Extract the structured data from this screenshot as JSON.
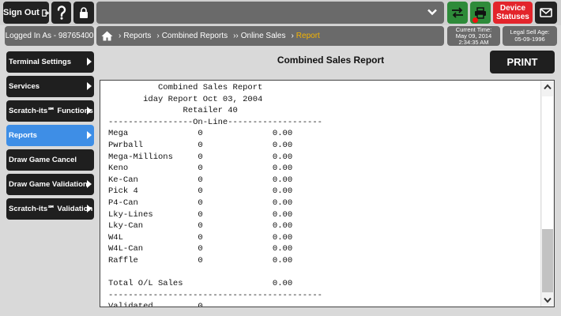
{
  "topbar": {
    "sign_out_label": "Sign Out",
    "device_statuses_label": "Device Statuses"
  },
  "status": {
    "logged_in": "Logged In As - 98765400",
    "current_time_label": "Current Time:",
    "current_date": "May 09, 2014",
    "current_time": "2:34:35 AM",
    "legal_sell_age_label": "Legal Sell Age:",
    "legal_sell_age_date": "05-09-1996"
  },
  "breadcrumb": [
    {
      "label": "Reports"
    },
    {
      "label": "Combined Reports"
    },
    {
      "label": "Online Sales"
    },
    {
      "label": "Report"
    }
  ],
  "menu": [
    {
      "label": "Terminal Settings",
      "arrow": true
    },
    {
      "label": "Services",
      "arrow": true
    },
    {
      "label": "Scratch-its℠ Functions",
      "arrow": true
    },
    {
      "label": "Reports",
      "arrow": true,
      "active": true
    },
    {
      "label": "Draw Game Cancel",
      "arrow": false
    },
    {
      "label": "Draw Game Validation",
      "arrow": true
    },
    {
      "label": "Scratch-its℠ Validation",
      "arrow": true
    }
  ],
  "main": {
    "title": "Combined Sales Report",
    "print_label": "PRINT"
  },
  "report": {
    "lines": [
      "          Combined Sales Report",
      "       iday Report Oct 03, 2004",
      "               Retailer 40",
      "-----------------On-Line-------------------",
      "Mega              0              0.00",
      "Pwrball           0              0.00",
      "Mega-Millions     0              0.00",
      "Keno              0              0.00",
      "Ke-Can            0              0.00",
      "Pick 4            0              0.00",
      "P4-Can            0              0.00",
      "Lky-Lines         0              0.00",
      "Lky-Can           0              0.00",
      "W4L               0              0.00",
      "W4L-Can           0              0.00",
      "Raffle            0              0.00",
      "",
      "Total O/L Sales                  0.00",
      "-------------------------------------------",
      "Validated         0"
    ]
  },
  "colors": {
    "accent_active": "#3e8ee6",
    "breadcrumb_current": "#f5b400",
    "device_status": "#e3242b",
    "action_green": "#2e8b3a"
  }
}
